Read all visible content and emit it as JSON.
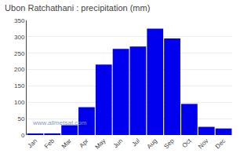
{
  "chart_data": {
    "type": "bar",
    "title": "Ubon Ratchathani : precipitation (mm)",
    "categories": [
      "Jan",
      "Feb",
      "Mar",
      "Apr",
      "May",
      "Jun",
      "Jul",
      "Aug",
      "Sep",
      "Oct",
      "Nov",
      "Dec"
    ],
    "values": [
      3,
      5,
      30,
      85,
      215,
      263,
      270,
      325,
      295,
      95,
      25,
      20
    ],
    "color": "#0000EE",
    "ylim": [
      0,
      350
    ],
    "yticks": [
      0,
      50,
      100,
      150,
      200,
      250,
      300,
      350
    ],
    "grid": true,
    "annotations": [
      "www.allmetsat.com"
    ]
  }
}
